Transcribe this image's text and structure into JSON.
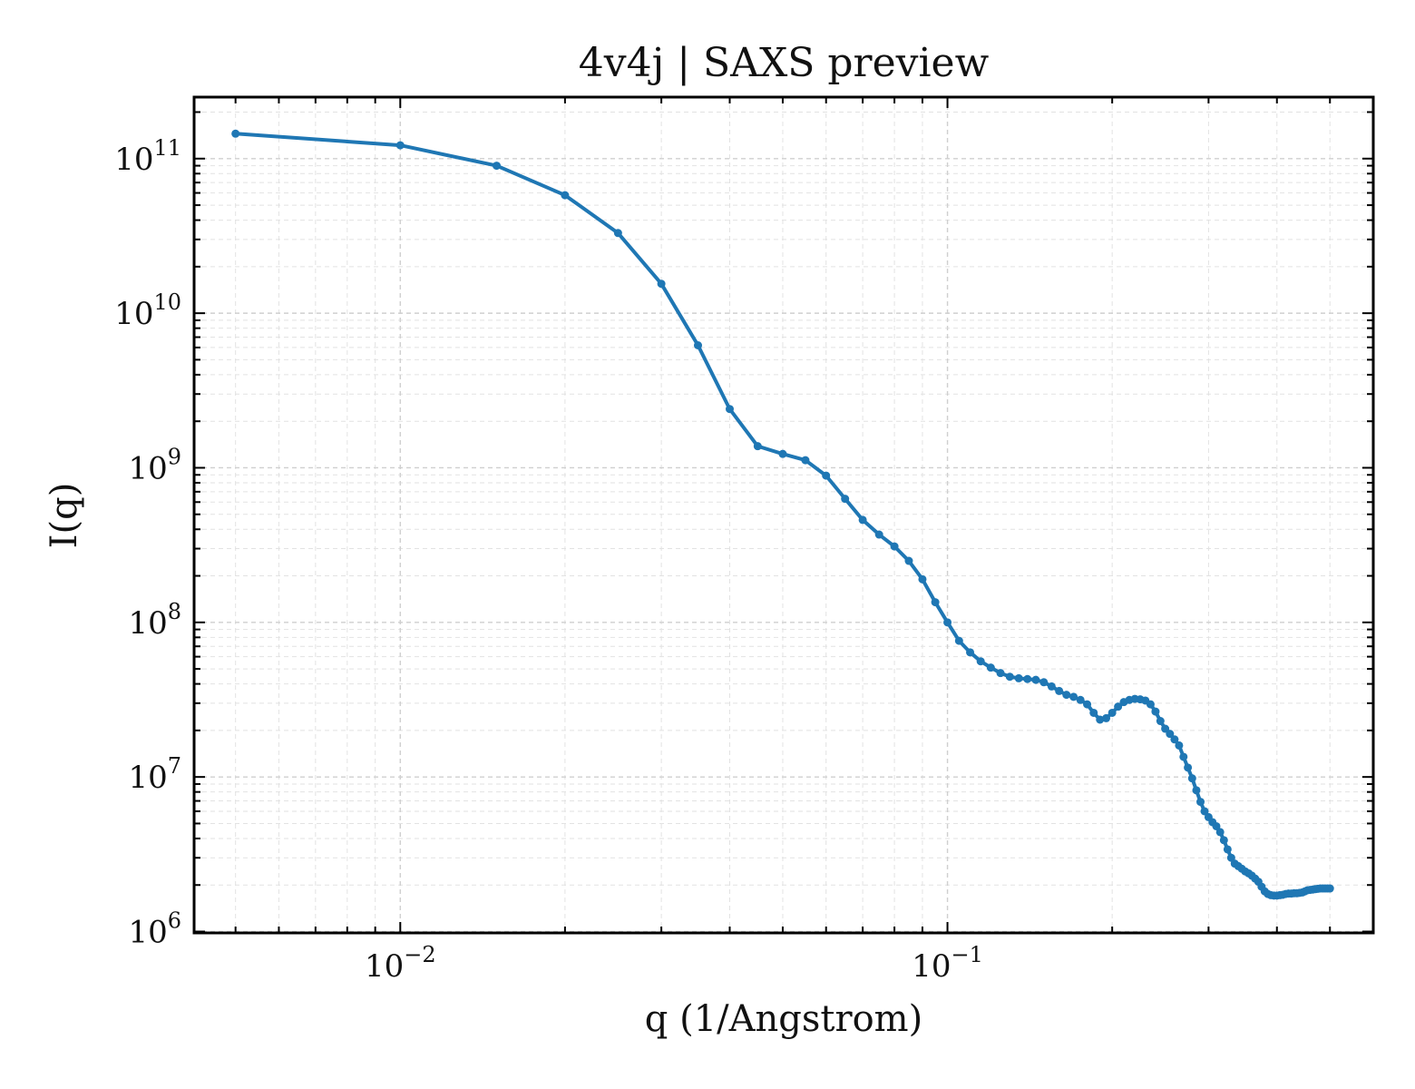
{
  "chart_data": {
    "type": "line",
    "title": "4v4j | SAXS preview",
    "xlabel": "q (1/Angstrom)",
    "ylabel": "I(q)",
    "xscale": "log",
    "yscale": "log",
    "xlim": [
      0.0042,
      0.6
    ],
    "ylim": [
      980000,
      250000000000.0
    ],
    "grid": true,
    "legend": "none",
    "x_tick_labels": [
      {
        "value": 0.01,
        "base": "10",
        "exp": "−2"
      },
      {
        "value": 0.1,
        "base": "10",
        "exp": "−1"
      }
    ],
    "y_tick_labels": [
      {
        "value": 1000000.0,
        "base": "10",
        "exp": "6"
      },
      {
        "value": 10000000.0,
        "base": "10",
        "exp": "7"
      },
      {
        "value": 100000000.0,
        "base": "10",
        "exp": "8"
      },
      {
        "value": 1000000000.0,
        "base": "10",
        "exp": "9"
      },
      {
        "value": 10000000000.0,
        "base": "10",
        "exp": "10"
      },
      {
        "value": 100000000000.0,
        "base": "10",
        "exp": "11"
      }
    ],
    "series": [
      {
        "color": "#1f77b4",
        "x": [
          0.005,
          0.01,
          0.015,
          0.02,
          0.025,
          0.03,
          0.035,
          0.04,
          0.045,
          0.05,
          0.055,
          0.06,
          0.065,
          0.07,
          0.075,
          0.08,
          0.085,
          0.09,
          0.095,
          0.1,
          0.105,
          0.11,
          0.115,
          0.12,
          0.125,
          0.13,
          0.135,
          0.14,
          0.145,
          0.15,
          0.155,
          0.16,
          0.165,
          0.17,
          0.175,
          0.18,
          0.185,
          0.19,
          0.195,
          0.2,
          0.205,
          0.21,
          0.215,
          0.22,
          0.225,
          0.23,
          0.235,
          0.24,
          0.245,
          0.25,
          0.255,
          0.26,
          0.265,
          0.27,
          0.275,
          0.28,
          0.285,
          0.29,
          0.295,
          0.3,
          0.305,
          0.31,
          0.315,
          0.32,
          0.325,
          0.33,
          0.335,
          0.34,
          0.345,
          0.35,
          0.355,
          0.36,
          0.365,
          0.37,
          0.375,
          0.38,
          0.385,
          0.39,
          0.395,
          0.4,
          0.405,
          0.41,
          0.415,
          0.42,
          0.425,
          0.43,
          0.435,
          0.44,
          0.445,
          0.45,
          0.455,
          0.46,
          0.465,
          0.47,
          0.475,
          0.48,
          0.485,
          0.49,
          0.495,
          0.5
        ],
        "y": [
          145000000000.0,
          122000000000.0,
          90000000000.0,
          58000000000.0,
          33000000000.0,
          15500000000.0,
          6200000000.0,
          2400000000.0,
          1380000000.0,
          1230000000.0,
          1120000000.0,
          890000000.0,
          630000000.0,
          460000000.0,
          370000000.0,
          310000000.0,
          250000000.0,
          190000000.0,
          135000000.0,
          100000000.0,
          76000000.0,
          64000000.0,
          56000000.0,
          51000000.0,
          47000000.0,
          44500000.0,
          43500000.0,
          43000000.0,
          42500000.0,
          41000000.0,
          38500000.0,
          36000000.0,
          34000000.0,
          33000000.0,
          31500000.0,
          29500000.0,
          26000000.0,
          23500000.0,
          24000000.0,
          26000000.0,
          28500000.0,
          30500000.0,
          31500000.0,
          32000000.0,
          31800000.0,
          31200000.0,
          29500000.0,
          26500000.0,
          23000000.0,
          20500000.0,
          19000000.0,
          17500000.0,
          16000000.0,
          13500000.0,
          11500000.0,
          9800000.0,
          8200000.0,
          6900000.0,
          6000000.0,
          5500000.0,
          5100000.0,
          4800000.0,
          4400000.0,
          3900000.0,
          3400000.0,
          3000000.0,
          2750000.0,
          2650000.0,
          2550000.0,
          2450000.0,
          2380000.0,
          2300000.0,
          2200000.0,
          2100000.0,
          1950000.0,
          1820000.0,
          1750000.0,
          1720000.0,
          1710000.0,
          1710000.0,
          1720000.0,
          1730000.0,
          1750000.0,
          1760000.0,
          1760000.0,
          1770000.0,
          1770000.0,
          1780000.0,
          1790000.0,
          1820000.0,
          1850000.0,
          1860000.0,
          1870000.0,
          1880000.0,
          1890000.0,
          1900000.0,
          1900000.0,
          1900000.0,
          1900000.0,
          1900000.0
        ]
      }
    ]
  }
}
